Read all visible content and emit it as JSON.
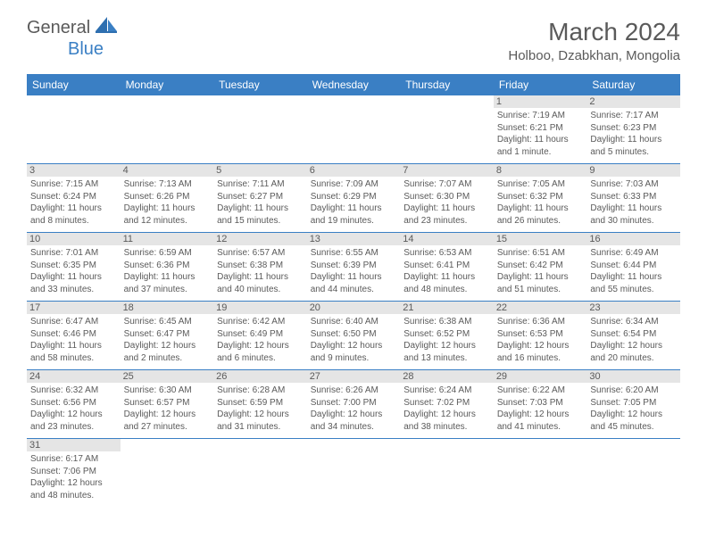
{
  "brand": {
    "part1": "General",
    "part2": "Blue"
  },
  "title": "March 2024",
  "location": "Holboo, Dzabkhan, Mongolia",
  "colors": {
    "header_bg": "#3a7fc4",
    "header_text": "#ffffff",
    "text": "#5a5a5a",
    "daynum_bg": "#e5e5e5",
    "border": "#3a7fc4"
  },
  "days_of_week": [
    "Sunday",
    "Monday",
    "Tuesday",
    "Wednesday",
    "Thursday",
    "Friday",
    "Saturday"
  ],
  "weeks": [
    [
      null,
      null,
      null,
      null,
      null,
      {
        "n": "1",
        "sr": "Sunrise: 7:19 AM",
        "ss": "Sunset: 6:21 PM",
        "dl": "Daylight: 11 hours and 1 minute."
      },
      {
        "n": "2",
        "sr": "Sunrise: 7:17 AM",
        "ss": "Sunset: 6:23 PM",
        "dl": "Daylight: 11 hours and 5 minutes."
      }
    ],
    [
      {
        "n": "3",
        "sr": "Sunrise: 7:15 AM",
        "ss": "Sunset: 6:24 PM",
        "dl": "Daylight: 11 hours and 8 minutes."
      },
      {
        "n": "4",
        "sr": "Sunrise: 7:13 AM",
        "ss": "Sunset: 6:26 PM",
        "dl": "Daylight: 11 hours and 12 minutes."
      },
      {
        "n": "5",
        "sr": "Sunrise: 7:11 AM",
        "ss": "Sunset: 6:27 PM",
        "dl": "Daylight: 11 hours and 15 minutes."
      },
      {
        "n": "6",
        "sr": "Sunrise: 7:09 AM",
        "ss": "Sunset: 6:29 PM",
        "dl": "Daylight: 11 hours and 19 minutes."
      },
      {
        "n": "7",
        "sr": "Sunrise: 7:07 AM",
        "ss": "Sunset: 6:30 PM",
        "dl": "Daylight: 11 hours and 23 minutes."
      },
      {
        "n": "8",
        "sr": "Sunrise: 7:05 AM",
        "ss": "Sunset: 6:32 PM",
        "dl": "Daylight: 11 hours and 26 minutes."
      },
      {
        "n": "9",
        "sr": "Sunrise: 7:03 AM",
        "ss": "Sunset: 6:33 PM",
        "dl": "Daylight: 11 hours and 30 minutes."
      }
    ],
    [
      {
        "n": "10",
        "sr": "Sunrise: 7:01 AM",
        "ss": "Sunset: 6:35 PM",
        "dl": "Daylight: 11 hours and 33 minutes."
      },
      {
        "n": "11",
        "sr": "Sunrise: 6:59 AM",
        "ss": "Sunset: 6:36 PM",
        "dl": "Daylight: 11 hours and 37 minutes."
      },
      {
        "n": "12",
        "sr": "Sunrise: 6:57 AM",
        "ss": "Sunset: 6:38 PM",
        "dl": "Daylight: 11 hours and 40 minutes."
      },
      {
        "n": "13",
        "sr": "Sunrise: 6:55 AM",
        "ss": "Sunset: 6:39 PM",
        "dl": "Daylight: 11 hours and 44 minutes."
      },
      {
        "n": "14",
        "sr": "Sunrise: 6:53 AM",
        "ss": "Sunset: 6:41 PM",
        "dl": "Daylight: 11 hours and 48 minutes."
      },
      {
        "n": "15",
        "sr": "Sunrise: 6:51 AM",
        "ss": "Sunset: 6:42 PM",
        "dl": "Daylight: 11 hours and 51 minutes."
      },
      {
        "n": "16",
        "sr": "Sunrise: 6:49 AM",
        "ss": "Sunset: 6:44 PM",
        "dl": "Daylight: 11 hours and 55 minutes."
      }
    ],
    [
      {
        "n": "17",
        "sr": "Sunrise: 6:47 AM",
        "ss": "Sunset: 6:46 PM",
        "dl": "Daylight: 11 hours and 58 minutes."
      },
      {
        "n": "18",
        "sr": "Sunrise: 6:45 AM",
        "ss": "Sunset: 6:47 PM",
        "dl": "Daylight: 12 hours and 2 minutes."
      },
      {
        "n": "19",
        "sr": "Sunrise: 6:42 AM",
        "ss": "Sunset: 6:49 PM",
        "dl": "Daylight: 12 hours and 6 minutes."
      },
      {
        "n": "20",
        "sr": "Sunrise: 6:40 AM",
        "ss": "Sunset: 6:50 PM",
        "dl": "Daylight: 12 hours and 9 minutes."
      },
      {
        "n": "21",
        "sr": "Sunrise: 6:38 AM",
        "ss": "Sunset: 6:52 PM",
        "dl": "Daylight: 12 hours and 13 minutes."
      },
      {
        "n": "22",
        "sr": "Sunrise: 6:36 AM",
        "ss": "Sunset: 6:53 PM",
        "dl": "Daylight: 12 hours and 16 minutes."
      },
      {
        "n": "23",
        "sr": "Sunrise: 6:34 AM",
        "ss": "Sunset: 6:54 PM",
        "dl": "Daylight: 12 hours and 20 minutes."
      }
    ],
    [
      {
        "n": "24",
        "sr": "Sunrise: 6:32 AM",
        "ss": "Sunset: 6:56 PM",
        "dl": "Daylight: 12 hours and 23 minutes."
      },
      {
        "n": "25",
        "sr": "Sunrise: 6:30 AM",
        "ss": "Sunset: 6:57 PM",
        "dl": "Daylight: 12 hours and 27 minutes."
      },
      {
        "n": "26",
        "sr": "Sunrise: 6:28 AM",
        "ss": "Sunset: 6:59 PM",
        "dl": "Daylight: 12 hours and 31 minutes."
      },
      {
        "n": "27",
        "sr": "Sunrise: 6:26 AM",
        "ss": "Sunset: 7:00 PM",
        "dl": "Daylight: 12 hours and 34 minutes."
      },
      {
        "n": "28",
        "sr": "Sunrise: 6:24 AM",
        "ss": "Sunset: 7:02 PM",
        "dl": "Daylight: 12 hours and 38 minutes."
      },
      {
        "n": "29",
        "sr": "Sunrise: 6:22 AM",
        "ss": "Sunset: 7:03 PM",
        "dl": "Daylight: 12 hours and 41 minutes."
      },
      {
        "n": "30",
        "sr": "Sunrise: 6:20 AM",
        "ss": "Sunset: 7:05 PM",
        "dl": "Daylight: 12 hours and 45 minutes."
      }
    ],
    [
      {
        "n": "31",
        "sr": "Sunrise: 6:17 AM",
        "ss": "Sunset: 7:06 PM",
        "dl": "Daylight: 12 hours and 48 minutes."
      },
      null,
      null,
      null,
      null,
      null,
      null
    ]
  ]
}
